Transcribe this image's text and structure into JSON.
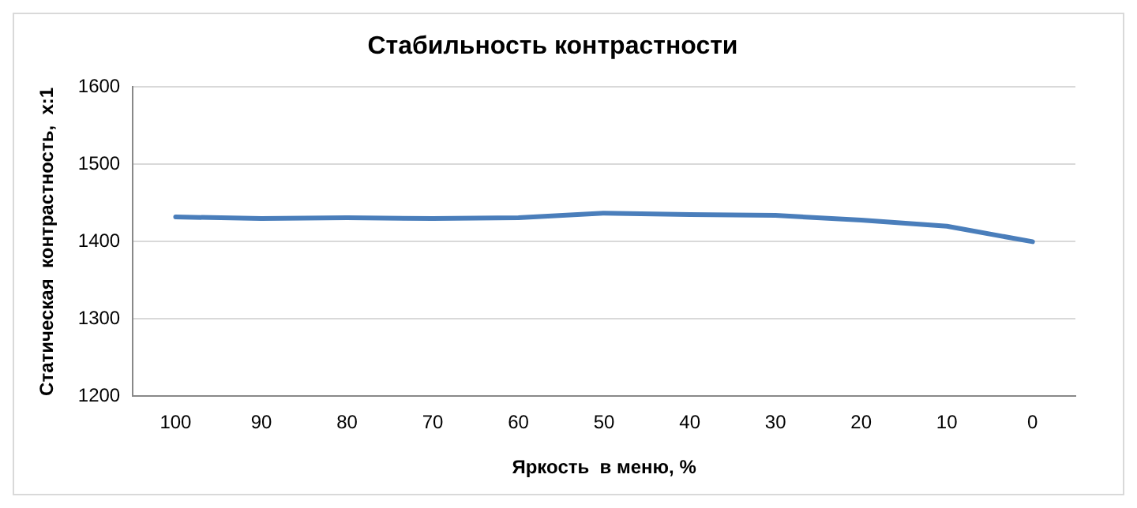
{
  "chart_data": {
    "type": "line",
    "title": "Стабильность контрастности",
    "xlabel": "Яркость  в меню, %",
    "ylabel": "Статическая  контрастность,  x:1",
    "categories": [
      "100",
      "90",
      "80",
      "70",
      "60",
      "50",
      "40",
      "30",
      "20",
      "10",
      "0"
    ],
    "series": [
      {
        "color": "#4a7ebb",
        "values": [
          1432,
          1430,
          1431,
          1430,
          1431,
          1437,
          1435,
          1434,
          1428,
          1420,
          1400
        ]
      }
    ],
    "ylim": [
      1200,
      1600
    ],
    "yticks": [
      1200,
      1300,
      1400,
      1500,
      1600
    ],
    "grid": "y",
    "legend": false,
    "marker": "none",
    "line_style": "solid"
  }
}
